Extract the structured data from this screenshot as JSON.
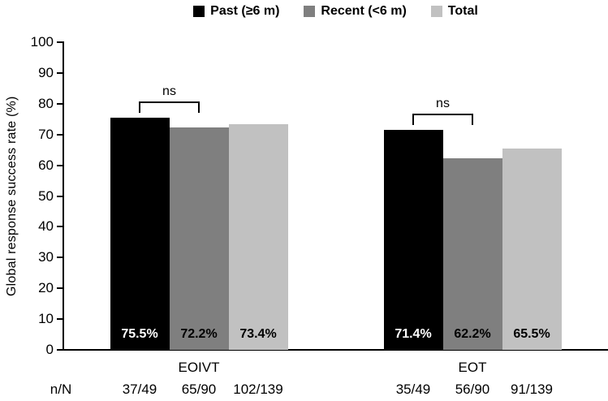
{
  "chart_data": {
    "type": "bar",
    "title": "",
    "ylabel": "Global response success rate (%)",
    "ylim": [
      0,
      100
    ],
    "yticks": [
      0,
      10,
      20,
      30,
      40,
      50,
      60,
      70,
      80,
      90,
      100
    ],
    "grid": false,
    "legend_position": "top",
    "categories": [
      "EOIVT",
      "EOT"
    ],
    "row_label": "n/N",
    "series": [
      {
        "name": "Past (≥6 m)",
        "color": "#000000",
        "label_color": "#ffffff",
        "values": [
          75.5,
          71.4
        ],
        "bar_labels": [
          "75.5%",
          "71.4%"
        ],
        "n_over_N": [
          "37/49",
          "35/49"
        ]
      },
      {
        "name": "Recent (<6 m)",
        "color": "#7f7f7f",
        "label_color": "#000000",
        "values": [
          72.2,
          62.2
        ],
        "bar_labels": [
          "72.2%",
          "62.2%"
        ],
        "n_over_N": [
          "65/90",
          "56/90"
        ]
      },
      {
        "name": "Total",
        "color": "#c1c1c1",
        "label_color": "#000000",
        "values": [
          73.4,
          65.5
        ],
        "bar_labels": [
          "73.4%",
          "65.5%"
        ],
        "n_over_N": [
          "102/139",
          "91/139"
        ]
      }
    ],
    "annotations": [
      {
        "text": "ns",
        "group": "EOIVT",
        "between": [
          "Past (≥6 m)",
          "Recent (<6 m)"
        ]
      },
      {
        "text": "ns",
        "group": "EOT",
        "between": [
          "Past (≥6 m)",
          "Recent (<6 m)"
        ]
      }
    ]
  }
}
